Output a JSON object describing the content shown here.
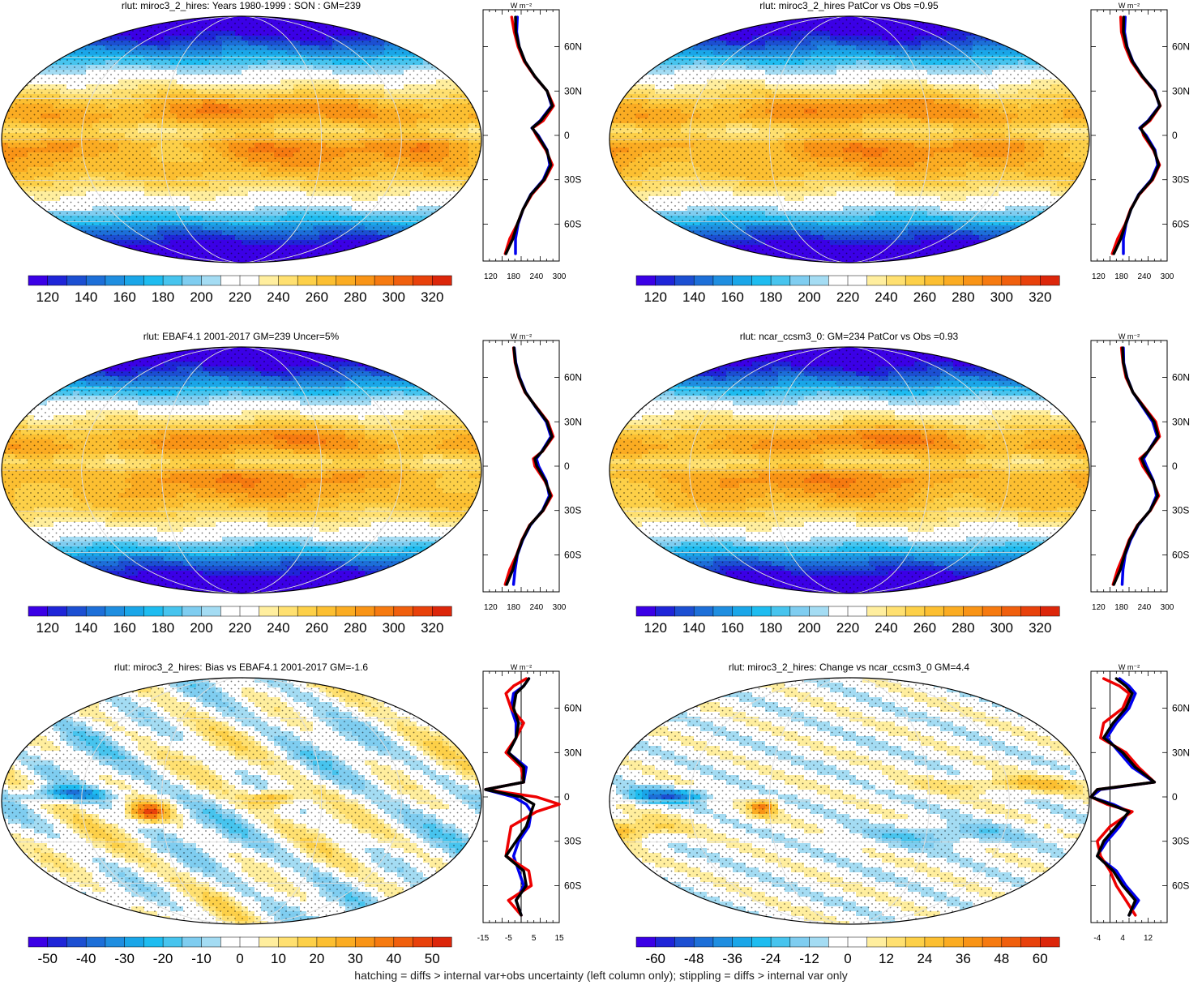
{
  "footnote": "hatching = diffs > internal var+obs uncertainty (left column only); stippling = diffs > internal var only",
  "chart_data": [
    {
      "type": "heatmap",
      "title": "rlut: miroc3_2_hires: Years 1980-1999 : SON : GM=239",
      "kind": "abs",
      "colorbar_ticks": [
        "120",
        "140",
        "160",
        "180",
        "200",
        "220",
        "240",
        "260",
        "280",
        "300",
        "320"
      ],
      "colorbar_range": [
        110,
        330
      ],
      "profile": {
        "unit_label": "W m⁻²",
        "y_tick_labels": [
          "60N",
          "30N",
          "0",
          "30S",
          "60S"
        ],
        "y_ticks": [
          60,
          30,
          0,
          -30,
          -60
        ],
        "x_tick_labels": [
          "120",
          "180",
          "240",
          "300"
        ],
        "x_ticks": [
          120,
          180,
          240,
          300
        ],
        "xlim": [
          100,
          300
        ],
        "ylim": [
          -85,
          85
        ],
        "zero_line": false,
        "latitudes": [
          80,
          70,
          60,
          50,
          40,
          30,
          20,
          10,
          5,
          0,
          -10,
          -20,
          -30,
          -40,
          -50,
          -60,
          -70,
          -80
        ],
        "series": [
          {
            "color": "#0000ee",
            "values": [
              190,
              188,
              195,
              210,
              235,
              268,
              280,
              250,
              228,
              245,
              268,
              275,
              258,
              225,
              205,
              192,
              185,
              185
            ]
          },
          {
            "color": "#ee0000",
            "values": [
              175,
              182,
              192,
              208,
              235,
              268,
              285,
              258,
              230,
              240,
              265,
              282,
              262,
              228,
              205,
              190,
              170,
              158
            ]
          },
          {
            "color": "#000000",
            "values": [
              185,
              186,
              195,
              210,
              236,
              268,
              282,
              252,
              229,
              243,
              267,
              278,
              260,
              226,
              205,
              190,
              178,
              160
            ]
          }
        ]
      }
    },
    {
      "type": "heatmap",
      "title": "rlut: miroc3_2_hires PatCor vs Obs =0.95",
      "kind": "abs",
      "colorbar_ticks": [
        "120",
        "140",
        "160",
        "180",
        "200",
        "220",
        "240",
        "260",
        "280",
        "300",
        "320"
      ],
      "colorbar_range": [
        110,
        330
      ],
      "profile": {
        "unit_label": "W m⁻²",
        "y_tick_labels": [
          "60N",
          "30N",
          "0",
          "30S",
          "60S"
        ],
        "y_ticks": [
          60,
          30,
          0,
          -30,
          -60
        ],
        "x_tick_labels": [
          "120",
          "180",
          "240",
          "300"
        ],
        "x_ticks": [
          120,
          180,
          240,
          300
        ],
        "xlim": [
          100,
          300
        ],
        "ylim": [
          -85,
          85
        ],
        "zero_line": false,
        "latitudes": [
          80,
          70,
          60,
          50,
          40,
          30,
          20,
          10,
          5,
          0,
          -10,
          -20,
          -30,
          -40,
          -50,
          -60,
          -70,
          -80
        ],
        "series": [
          {
            "color": "#0000ee",
            "values": [
              190,
              188,
              195,
              210,
              235,
              268,
              280,
              250,
              228,
              245,
              268,
              275,
              258,
              225,
              205,
              192,
              185,
              185
            ]
          },
          {
            "color": "#ee0000",
            "values": [
              178,
              180,
              190,
              206,
              233,
              266,
              282,
              255,
              232,
              238,
              264,
              280,
              262,
              227,
              204,
              190,
              170,
              156
            ]
          },
          {
            "color": "#000000",
            "values": [
              186,
              185,
              194,
              209,
              235,
              267,
              281,
              252,
              230,
              242,
              266,
              278,
              260,
              226,
              205,
              191,
              178,
              160
            ]
          }
        ]
      }
    },
    {
      "type": "heatmap",
      "title": "rlut: EBAF4.1 2001-2017 GM=239 Uncer=5%",
      "kind": "abs",
      "colorbar_ticks": [
        "120",
        "140",
        "160",
        "180",
        "200",
        "220",
        "240",
        "260",
        "280",
        "300",
        "320"
      ],
      "colorbar_range": [
        110,
        330
      ],
      "profile": {
        "unit_label": "W m⁻²",
        "y_tick_labels": [
          "60N",
          "30N",
          "0",
          "30S",
          "60S"
        ],
        "y_ticks": [
          60,
          30,
          0,
          -30,
          -60
        ],
        "x_tick_labels": [
          "120",
          "180",
          "240",
          "300"
        ],
        "x_ticks": [
          120,
          180,
          240,
          300
        ],
        "xlim": [
          100,
          300
        ],
        "ylim": [
          -85,
          85
        ],
        "zero_line": false,
        "latitudes": [
          80,
          70,
          60,
          50,
          40,
          30,
          20,
          10,
          5,
          0,
          -10,
          -20,
          -30,
          -40,
          -50,
          -60,
          -70,
          -80
        ],
        "series": [
          {
            "color": "#0000ee",
            "values": [
              182,
              186,
              196,
              212,
              238,
              266,
              278,
              254,
              240,
              246,
              266,
              274,
              256,
              224,
              204,
              190,
              184,
              180
            ]
          },
          {
            "color": "#ee0000",
            "values": [
              180,
              184,
              194,
              210,
              240,
              270,
              284,
              256,
              232,
              236,
              262,
              280,
              258,
              222,
              202,
              188,
              170,
              158
            ]
          },
          {
            "color": "#000000",
            "values": [
              181,
              185,
              195,
              211,
              239,
              268,
              281,
              255,
              236,
              241,
              264,
              277,
              257,
              223,
              203,
              189,
              178,
              162
            ]
          }
        ]
      }
    },
    {
      "type": "heatmap",
      "title": "rlut: ncar_ccsm3_0: GM=234 PatCor vs Obs =0.93",
      "kind": "abs",
      "colorbar_ticks": [
        "120",
        "140",
        "160",
        "180",
        "200",
        "220",
        "240",
        "260",
        "280",
        "300",
        "320"
      ],
      "colorbar_range": [
        110,
        330
      ],
      "profile": {
        "unit_label": "W m⁻²",
        "y_tick_labels": [
          "60N",
          "30N",
          "0",
          "30S",
          "60S"
        ],
        "y_ticks": [
          60,
          30,
          0,
          -30,
          -60
        ],
        "x_tick_labels": [
          "120",
          "180",
          "240",
          "300"
        ],
        "x_ticks": [
          120,
          180,
          240,
          300
        ],
        "xlim": [
          100,
          300
        ],
        "ylim": [
          -85,
          85
        ],
        "zero_line": false,
        "latitudes": [
          80,
          70,
          60,
          50,
          40,
          30,
          20,
          10,
          5,
          0,
          -10,
          -20,
          -30,
          -40,
          -50,
          -60,
          -70,
          -80
        ],
        "series": [
          {
            "color": "#0000ee",
            "values": [
              185,
              186,
              195,
              210,
              236,
              262,
              274,
              250,
              238,
              246,
              264,
              272,
              255,
              224,
              204,
              190,
              184,
              182
            ]
          },
          {
            "color": "#ee0000",
            "values": [
              180,
              184,
              192,
              210,
              240,
              270,
              280,
              250,
              228,
              236,
              262,
              278,
              256,
              222,
              200,
              186,
              170,
              158
            ]
          },
          {
            "color": "#000000",
            "values": [
              183,
              185,
              194,
              210,
              238,
              266,
              277,
              250,
              233,
              241,
              263,
              275,
              255,
              223,
              202,
              188,
              177,
              160
            ]
          }
        ]
      }
    },
    {
      "type": "heatmap",
      "title": "rlut: miroc3_2_hires: Bias vs EBAF4.1 2001-2017  GM=-1.6",
      "kind": "bias",
      "colorbar_ticks": [
        "-50",
        "-40",
        "-30",
        "-20",
        "-10",
        "0",
        "10",
        "20",
        "30",
        "40",
        "50"
      ],
      "colorbar_range": [
        -55,
        55
      ],
      "profile": {
        "unit_label": "W m⁻²",
        "y_tick_labels": [
          "60N",
          "30N",
          "0",
          "30S",
          "60S"
        ],
        "y_ticks": [
          60,
          30,
          0,
          -30,
          -60
        ],
        "x_tick_labels": [
          "-15",
          "-5",
          "5",
          "15"
        ],
        "x_ticks": [
          -15,
          -5,
          5,
          15
        ],
        "xlim": [
          -15,
          15
        ],
        "ylim": [
          -85,
          85
        ],
        "zero_line": true,
        "latitudes": [
          80,
          75,
          70,
          60,
          50,
          40,
          30,
          20,
          10,
          5,
          0,
          -5,
          -10,
          -20,
          -30,
          -40,
          -50,
          -60,
          -70,
          -80
        ],
        "series": [
          {
            "color": "#0000ee",
            "values": [
              3,
              1,
              -3,
              -4,
              -2,
              -2,
              -5,
              2,
              1,
              -14,
              -3,
              2,
              4,
              3,
              -1,
              -3,
              -1,
              1,
              -2,
              0
            ]
          },
          {
            "color": "#ee0000",
            "values": [
              2,
              -3,
              -6,
              -4,
              1,
              -2,
              -6,
              0,
              1,
              -14,
              6,
              15,
              6,
              -4,
              -5,
              -6,
              3,
              4,
              -5,
              0
            ]
          },
          {
            "color": "#000000",
            "values": [
              3,
              1,
              -2,
              -3,
              -1,
              -2,
              -5,
              1,
              1,
              -14,
              0,
              5,
              4,
              2,
              -2,
              -6,
              1,
              2,
              -2,
              0
            ]
          }
        ]
      }
    },
    {
      "type": "heatmap",
      "title": "rlut: miroc3_2_hires: Change vs ncar_ccsm3_0 GM=4.4",
      "kind": "change",
      "colorbar_ticks": [
        "-60",
        "-48",
        "-36",
        "-24",
        "-12",
        "0",
        "12",
        "24",
        "36",
        "48",
        "60"
      ],
      "colorbar_range": [
        -66,
        66
      ],
      "profile": {
        "unit_label": "W m⁻²",
        "y_tick_labels": [
          "60N",
          "30N",
          "0",
          "30S",
          "60S"
        ],
        "y_ticks": [
          60,
          30,
          0,
          -30,
          -60
        ],
        "x_tick_labels": [
          "-4",
          "4",
          "12"
        ],
        "x_ticks": [
          -4,
          4,
          12
        ],
        "xlim": [
          -6,
          18
        ],
        "ylim": [
          -85,
          85
        ],
        "zero_line": true,
        "latitudes": [
          80,
          75,
          70,
          60,
          50,
          40,
          30,
          20,
          10,
          5,
          0,
          -5,
          -10,
          -20,
          -30,
          -40,
          -50,
          -60,
          -70,
          -80
        ],
        "series": [
          {
            "color": "#0000ee",
            "values": [
              3,
              6,
              8,
              6,
              2,
              -1,
              3,
              7,
              14,
              -3,
              -6,
              1,
              6,
              3,
              -1,
              -4,
              2,
              5,
              9,
              6
            ]
          },
          {
            "color": "#ee0000",
            "values": [
              -2,
              3,
              6,
              4,
              -2,
              -3,
              5,
              9,
              14,
              -4,
              -6,
              -1,
              7,
              0,
              -4,
              -3,
              0,
              2,
              5,
              8
            ]
          },
          {
            "color": "#000000",
            "values": [
              2,
              5,
              7,
              5,
              1,
              -2,
              4,
              8,
              14,
              -4,
              -6,
              0,
              6,
              2,
              -2,
              -4,
              1,
              4,
              8,
              6
            ]
          }
        ]
      }
    }
  ],
  "colors": {
    "abs_palette": [
      "#3b00e6",
      "#1f25d8",
      "#1c4fd2",
      "#1d6fd8",
      "#1f8ee0",
      "#1aa6e8",
      "#1ebcf0",
      "#47c4ee",
      "#7fcdf0",
      "#a4dcf3",
      "#ffffff",
      "#ffffff",
      "#ffee9e",
      "#ffe070",
      "#fdd048",
      "#fcbf31",
      "#fbac22",
      "#f99416",
      "#f67a10",
      "#f05f0d",
      "#e8410b",
      "#dc260a"
    ],
    "bias_palette": [
      "#3b00e6",
      "#1f25d8",
      "#1c4fd2",
      "#1d6fd8",
      "#1f8ee0",
      "#1aa6e8",
      "#1ebcf0",
      "#47c4ee",
      "#7fcdf0",
      "#a4dcf3",
      "#ffffff",
      "#ffffff",
      "#ffee9e",
      "#ffe070",
      "#fdd048",
      "#fcbf31",
      "#fbac22",
      "#f99416",
      "#f67a10",
      "#f05f0d",
      "#e8410b",
      "#dc260a"
    ]
  }
}
